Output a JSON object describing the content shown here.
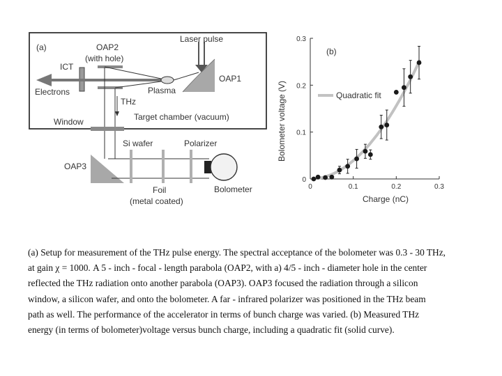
{
  "figure_a": {
    "panel": "(a)",
    "labels": {
      "laser_pulse": "Laser pulse",
      "oap2": "OAP2",
      "with_hole": "(with hole)",
      "ict": "ICT",
      "oap1": "OAP1",
      "electrons": "Electrons",
      "plasma": "Plasma",
      "thz": "THz",
      "target_chamber": "Target chamber (vacuum)",
      "window": "Window",
      "si_wafer": "Si wafer",
      "polarizer": "Polarizer",
      "oap3": "OAP3",
      "foil": "Foil",
      "metal_coated": "(metal coated)",
      "bolometer": "Bolometer"
    }
  },
  "chart_data": {
    "type": "scatter",
    "panel": "(b)",
    "title": "",
    "xlabel": "Charge (nC)",
    "ylabel": "Bolometer voltage (V)",
    "xlim": [
      0,
      0.3
    ],
    "ylim": [
      0,
      0.3
    ],
    "x_ticks": [
      "0",
      "0.1",
      "0.2",
      "0.3"
    ],
    "y_ticks": [
      "0",
      "0.1",
      "0.2",
      "0.3"
    ],
    "legend": "Quadratic fit",
    "legend_position": "upper-left",
    "grid": false,
    "colors": {
      "points": "#1a1a1a",
      "fit": "#c2c2c2",
      "axes": "#333333"
    },
    "points": [
      {
        "x": 0.008,
        "y": 0.0,
        "err": 0.0
      },
      {
        "x": 0.018,
        "y": 0.004,
        "err": 0.0
      },
      {
        "x": 0.035,
        "y": 0.003,
        "err": 0.003
      },
      {
        "x": 0.05,
        "y": 0.004,
        "err": 0.0
      },
      {
        "x": 0.068,
        "y": 0.019,
        "err": 0.008
      },
      {
        "x": 0.087,
        "y": 0.027,
        "err": 0.015
      },
      {
        "x": 0.108,
        "y": 0.043,
        "err": 0.02
      },
      {
        "x": 0.128,
        "y": 0.059,
        "err": 0.015
      },
      {
        "x": 0.14,
        "y": 0.052,
        "err": 0.01
      },
      {
        "x": 0.165,
        "y": 0.111,
        "err": 0.025
      },
      {
        "x": 0.178,
        "y": 0.115,
        "err": 0.032
      },
      {
        "x": 0.2,
        "y": 0.185,
        "err": 0.0
      },
      {
        "x": 0.218,
        "y": 0.195,
        "err": 0.04
      },
      {
        "x": 0.233,
        "y": 0.218,
        "err": 0.035
      },
      {
        "x": 0.253,
        "y": 0.248,
        "err": 0.035
      }
    ],
    "fit_coefficient": 3.9
  },
  "caption": {
    "lines": [
      "(a) Setup for measurement of the THz pulse energy. The spectral acceptance of the bolometer was 0.3 - 30 THz,",
      "at gain χ = 1000.   A 5 - inch - focal - length parabola   (OAP2, with a) 4/5 - inch - diameter hole in the center",
      " reflected the THz radiation   onto   another  parabola (OAP3). OAP3 focused the radiation through a silicon",
      "window, a silicon wafer, and   onto  the  bolometer.  A far - infrared polarizer was positioned in the THz beam",
      "path as well.   The  performance  of  the   accelerator in  terms of bunch charge was varied. (b) Measured THz",
      "energy (in terms of bolometer)voltage versus bunch charge, including a quadratic fit (solid curve)."
    ]
  }
}
